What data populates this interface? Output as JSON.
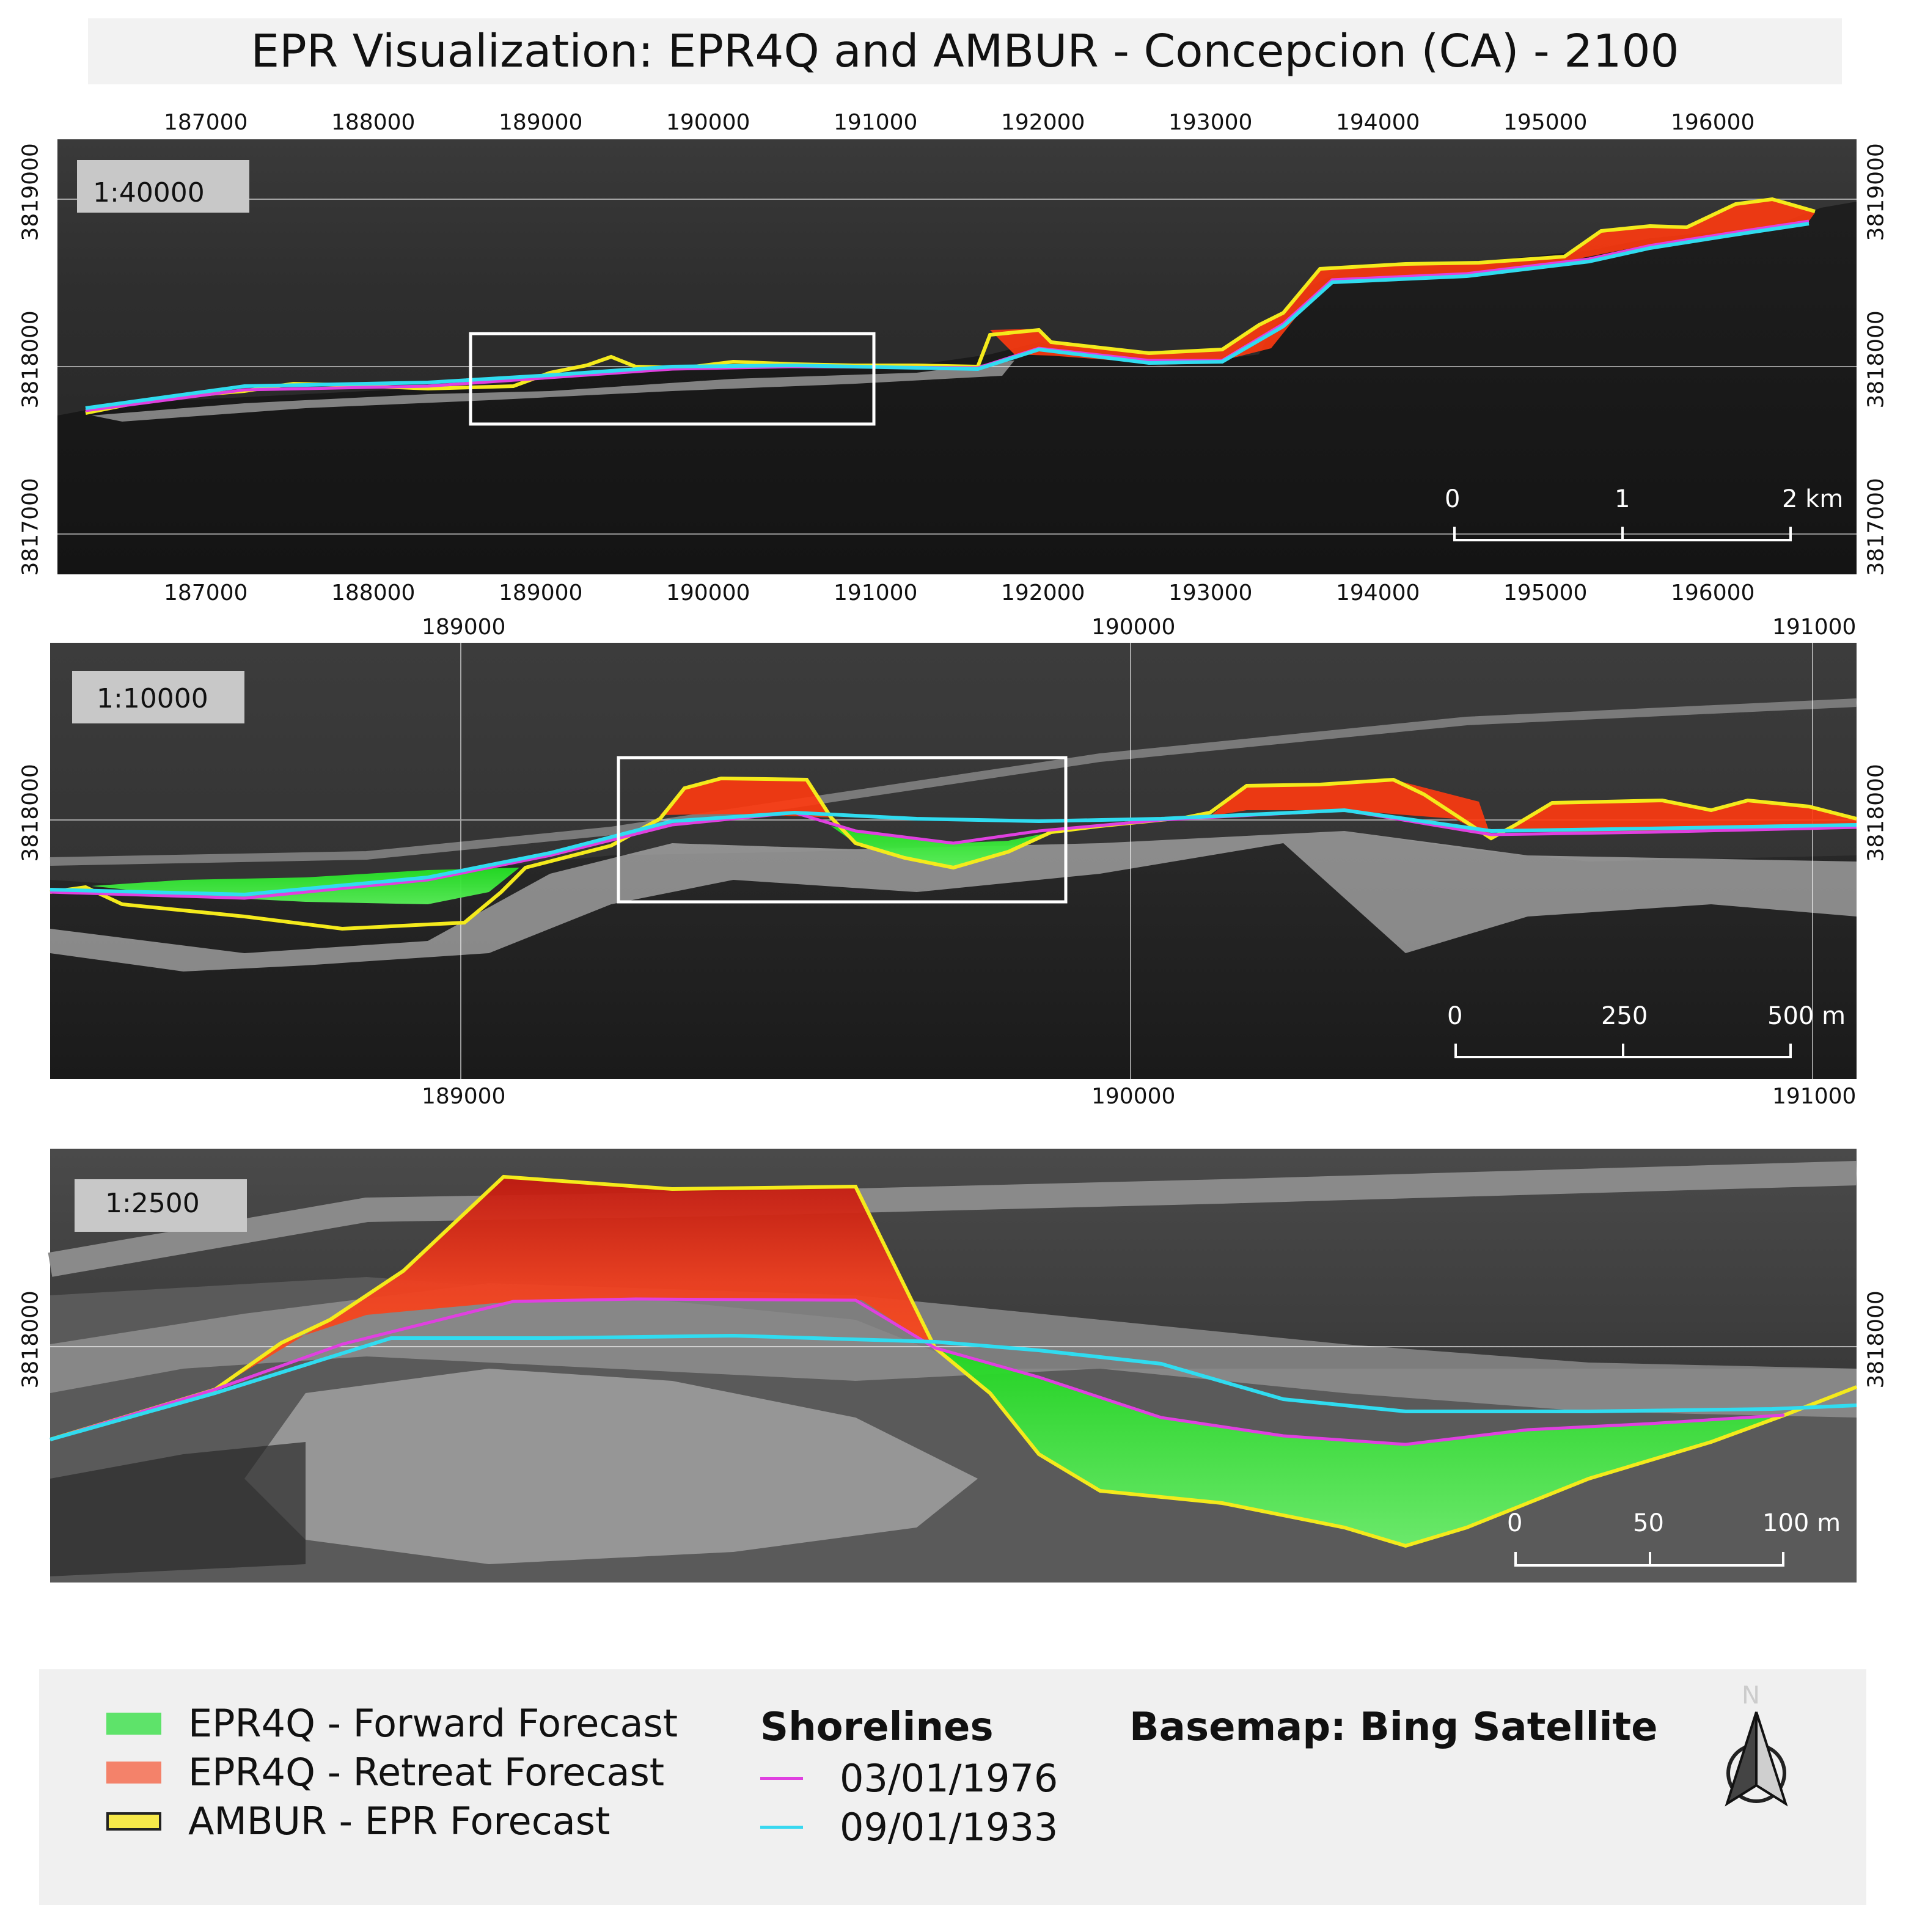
{
  "title": "EPR Visualization: EPR4Q and AMBUR - Concepcion (CA) - 2100",
  "panels": [
    {
      "scale": "1:40000",
      "x_ticks": [
        "187000",
        "188000",
        "189000",
        "190000",
        "191000",
        "192000",
        "193000",
        "194000",
        "195000",
        "196000"
      ],
      "y_ticks": [
        "3819000",
        "3818000",
        "3817000"
      ],
      "scalebar": [
        "0",
        "1",
        "2 km"
      ]
    },
    {
      "scale": "1:10000",
      "x_ticks": [
        "189000",
        "190000",
        "191000"
      ],
      "y_ticks": [
        "3818000"
      ],
      "scalebar": [
        "0",
        "250",
        "500 m"
      ]
    },
    {
      "scale": "1:2500",
      "x_ticks": [],
      "y_ticks": [
        "3818000"
      ],
      "scalebar": [
        "0",
        "50",
        "100 m"
      ]
    }
  ],
  "legend": {
    "items": [
      {
        "label": "EPR4Q - Forward Forecast",
        "color": "#5ee36a"
      },
      {
        "label": "EPR4Q - Retreat Forecast",
        "color": "#f4826a"
      },
      {
        "label": "AMBUR - EPR Forecast",
        "color": "#f7e94a"
      }
    ],
    "shorelines_title": "Shorelines",
    "shorelines": [
      {
        "label": "03/01/1976",
        "color": "#e040e0"
      },
      {
        "label": "09/01/1933",
        "color": "#38d8f0"
      }
    ],
    "basemap": "Basemap: Bing Satellite",
    "north": "N"
  },
  "colors": {
    "forward": "#22e022",
    "retreat": "#ff3a10",
    "ambur": "#f4ea1c",
    "shore_1976": "#e040e0",
    "shore_1933": "#30dcf0"
  }
}
